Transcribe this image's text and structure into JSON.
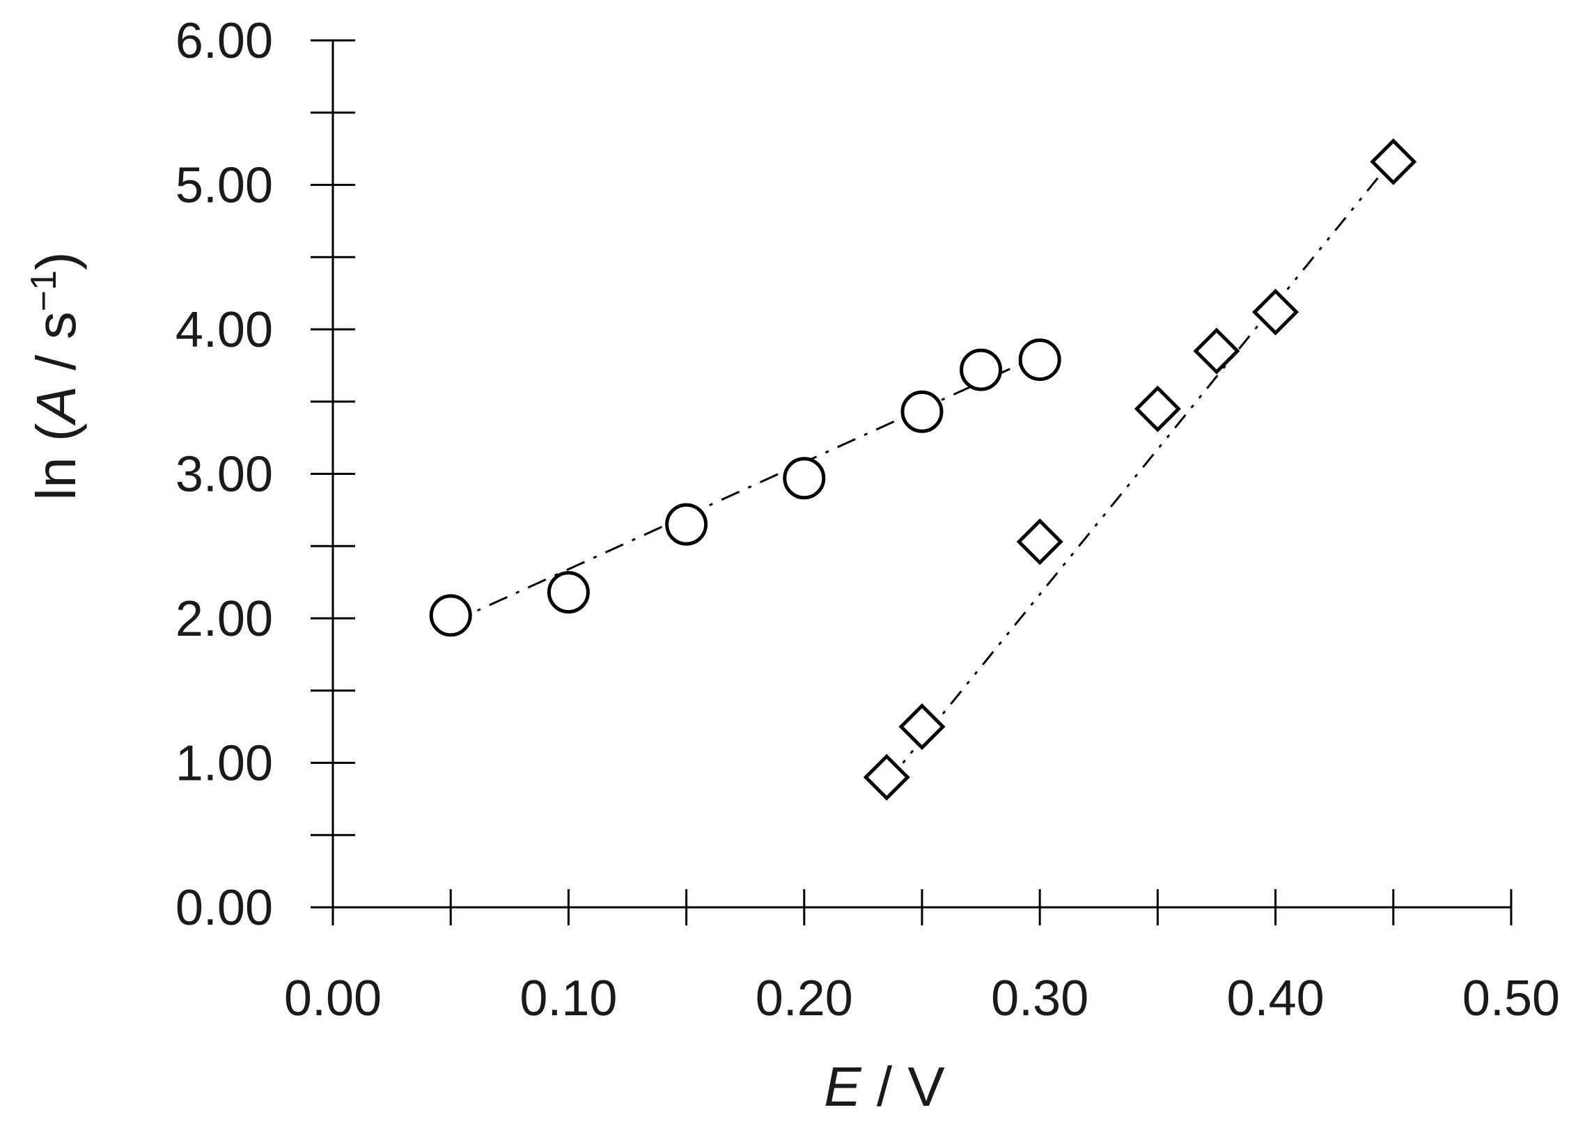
{
  "chart_data": {
    "type": "scatter",
    "title": "",
    "xlabel": {
      "italic": "E",
      "rest": " / V"
    },
    "ylabel": {
      "prefix": "ln (",
      "italic": "A",
      "mid": " / s",
      "sup": "−1",
      "suffix": ")"
    },
    "xlim": [
      0,
      0.5
    ],
    "ylim": [
      0,
      6
    ],
    "x_ticks": [
      "0.00",
      "0.10",
      "0.20",
      "0.30",
      "0.40",
      "0.50"
    ],
    "y_ticks": [
      "0.00",
      "1.00",
      "2.00",
      "3.00",
      "4.00",
      "5.00",
      "6.00"
    ],
    "x_minor_step": 0.05,
    "y_minor_step": 0.5,
    "grid": false,
    "series": [
      {
        "marker": "circle",
        "line_style": "dash-dot",
        "x": [
          0.05,
          0.1,
          0.15,
          0.2,
          0.25,
          0.275,
          0.3
        ],
        "y": [
          2.02,
          2.18,
          2.65,
          2.97,
          3.43,
          3.72,
          3.79
        ],
        "fit": {
          "x": [
            0.05,
            0.3
          ],
          "y": [
            1.97,
            3.82
          ]
        }
      },
      {
        "marker": "diamond",
        "line_style": "dash-dot-dot",
        "x": [
          0.235,
          0.25,
          0.3,
          0.35,
          0.375,
          0.4,
          0.45
        ],
        "y": [
          0.9,
          1.25,
          2.53,
          3.45,
          3.85,
          4.12,
          5.16
        ],
        "fit": {
          "x": [
            0.235,
            0.45
          ],
          "y": [
            0.86,
            5.18
          ]
        }
      }
    ]
  }
}
